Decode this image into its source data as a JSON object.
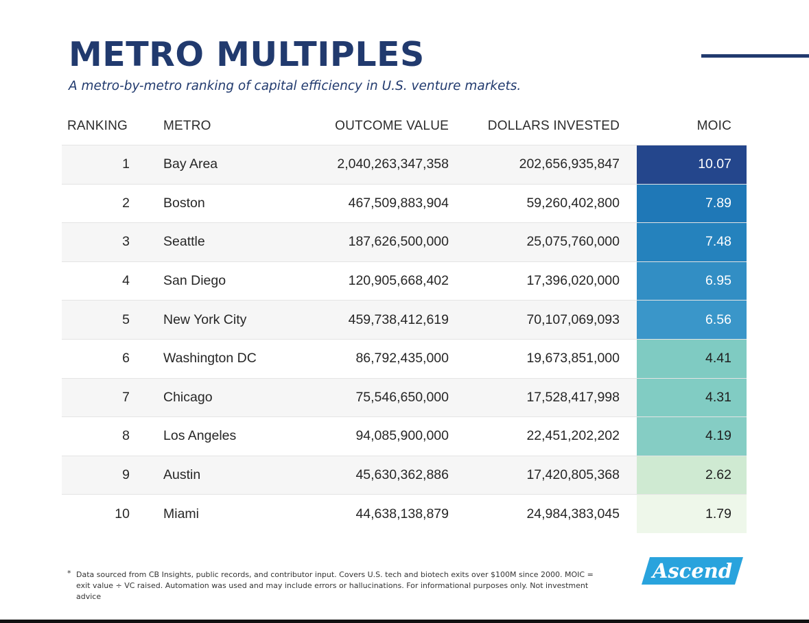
{
  "header": {
    "title": "METRO MULTIPLES",
    "subtitle": "A metro-by-metro ranking of capital efficiency in U.S. venture markets."
  },
  "chart_data": {
    "type": "table",
    "columns": [
      "RANKING",
      "METRO",
      "OUTCOME VALUE",
      "DOLLARS INVESTED",
      "MOIC"
    ],
    "rows": [
      {
        "rank": "1",
        "metro": "Bay Area",
        "outcome": "2,040,263,347,358",
        "invested": "202,656,935,847",
        "moic": "10.07",
        "moic_color": "#24468c",
        "moic_text": "#ffffff"
      },
      {
        "rank": "2",
        "metro": "Boston",
        "outcome": "467,509,883,904",
        "invested": "59,260,402,800",
        "moic": "7.89",
        "moic_color": "#1f78b7",
        "moic_text": "#ffffff"
      },
      {
        "rank": "3",
        "metro": "Seattle",
        "outcome": "187,626,500,000",
        "invested": "25,075,760,000",
        "moic": "7.48",
        "moic_color": "#2582bd",
        "moic_text": "#ffffff"
      },
      {
        "rank": "4",
        "metro": "San Diego",
        "outcome": "120,905,668,402",
        "invested": "17,396,020,000",
        "moic": "6.95",
        "moic_color": "#328ec4",
        "moic_text": "#ffffff"
      },
      {
        "rank": "5",
        "metro": "New York City",
        "outcome": "459,738,412,619",
        "invested": "70,107,069,093",
        "moic": "6.56",
        "moic_color": "#3a96c9",
        "moic_text": "#ffffff"
      },
      {
        "rank": "6",
        "metro": "Washington DC",
        "outcome": "86,792,435,000",
        "invested": "19,673,851,000",
        "moic": "4.41",
        "moic_color": "#7fcbc2",
        "moic_text": "#1f1f1f"
      },
      {
        "rank": "7",
        "metro": "Chicago",
        "outcome": "75,546,650,000",
        "invested": "17,528,417,998",
        "moic": "4.31",
        "moic_color": "#81ccc3",
        "moic_text": "#1f1f1f"
      },
      {
        "rank": "8",
        "metro": "Los Angeles",
        "outcome": "94,085,900,000",
        "invested": "22,451,202,202",
        "moic": "4.19",
        "moic_color": "#85cdc4",
        "moic_text": "#1f1f1f"
      },
      {
        "rank": "9",
        "metro": "Austin",
        "outcome": "45,630,362,886",
        "invested": "17,420,805,368",
        "moic": "2.62",
        "moic_color": "#cfead2",
        "moic_text": "#1f1f1f"
      },
      {
        "rank": "10",
        "metro": "Miami",
        "outcome": "44,638,138,879",
        "invested": "24,984,383,045",
        "moic": "1.79",
        "moic_color": "#eef7ea",
        "moic_text": "#1f1f1f"
      }
    ]
  },
  "footnote": {
    "marker": "*",
    "text": "Data sourced from CB Insights, public records, and contributor input. Covers U.S. tech and biotech exits over $100M since 2000. MOIC = exit value ÷ VC raised. Automation was used and may include errors or hallucinations. For informational purposes only. Not investment advice"
  },
  "logo": {
    "text": "Ascend",
    "color": "#29a3dd"
  },
  "colors": {
    "title": "#213a6e",
    "row_alt": "#f6f6f6"
  }
}
